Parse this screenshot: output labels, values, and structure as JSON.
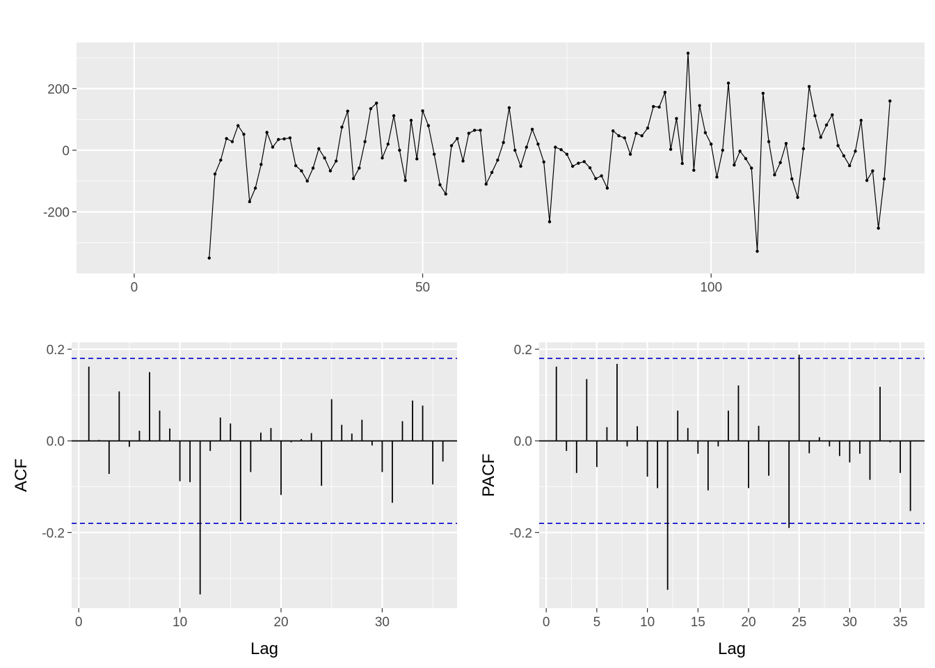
{
  "colors": {
    "panel_background": "#EBEBEB",
    "grid_major": "#FFFFFF",
    "grid_minor": "#F5F5F5",
    "series": "#000000",
    "confidence_band": "#0000CC",
    "tick_text": "#4D4D4D"
  },
  "chart_data": [
    {
      "type": "line",
      "title": "",
      "xlabel": "",
      "ylabel": "",
      "markers": true,
      "grid": true,
      "xlim": [
        -10,
        137
      ],
      "ylim": [
        -400,
        350
      ],
      "xticks": [
        0,
        50,
        100
      ],
      "xtick_labels": [
        "0",
        "50",
        "100"
      ],
      "yticks": [
        -200,
        0,
        200
      ],
      "ytick_labels": [
        "-200",
        "0",
        "200"
      ],
      "x_start": 13,
      "y": [
        -350,
        -77,
        -32,
        38,
        28,
        80,
        52,
        -167,
        -123,
        -46,
        58,
        10,
        35,
        37,
        40,
        -50,
        -67,
        -100,
        -58,
        5,
        -25,
        -67,
        -35,
        75,
        127,
        -92,
        -58,
        28,
        135,
        153,
        -25,
        20,
        112,
        0,
        -98,
        97,
        -28,
        128,
        80,
        -13,
        -112,
        -142,
        15,
        38,
        -35,
        55,
        65,
        65,
        -110,
        -72,
        -32,
        25,
        138,
        0,
        -52,
        10,
        68,
        20,
        -38,
        -232,
        10,
        2,
        -13,
        -52,
        -42,
        -37,
        -57,
        -92,
        -83,
        -123,
        63,
        47,
        40,
        -13,
        55,
        47,
        72,
        142,
        140,
        188,
        3,
        103,
        -43,
        315,
        -65,
        145,
        57,
        20,
        -87,
        0,
        218,
        -48,
        -3,
        -27,
        -58,
        -328,
        185,
        28,
        -80,
        -40,
        22,
        -93,
        -153,
        5,
        207,
        112,
        42,
        82,
        115,
        15,
        -18,
        -50,
        -3,
        97,
        -98,
        -67,
        -253,
        -93,
        160
      ]
    },
    {
      "type": "bar",
      "title": "",
      "xlabel": "Lag",
      "ylabel": "ACF",
      "grid": true,
      "xlim": [
        -0.7,
        37.4
      ],
      "ylim": [
        -0.365,
        0.215
      ],
      "xticks": [
        0,
        10,
        20,
        30
      ],
      "xtick_labels": [
        "0",
        "10",
        "20",
        "30"
      ],
      "yticks": [
        -0.2,
        0.0,
        0.2
      ],
      "ytick_labels": [
        "-0.2",
        "0.0",
        "0.2"
      ],
      "confidence_bounds": [
        0.18,
        -0.18
      ],
      "categories": [
        1,
        2,
        3,
        4,
        5,
        6,
        7,
        8,
        9,
        10,
        11,
        12,
        13,
        14,
        15,
        16,
        17,
        18,
        19,
        20,
        21,
        22,
        23,
        24,
        25,
        26,
        27,
        28,
        29,
        30,
        31,
        32,
        33,
        34,
        35,
        36
      ],
      "values": [
        0.162,
        0.002,
        -0.072,
        0.108,
        -0.013,
        0.022,
        0.15,
        0.066,
        0.027,
        -0.088,
        -0.09,
        -0.335,
        -0.022,
        0.051,
        0.038,
        -0.175,
        -0.068,
        0.018,
        0.028,
        -0.118,
        -0.003,
        0.004,
        0.017,
        -0.098,
        0.091,
        0.035,
        0.016,
        0.046,
        -0.01,
        -0.068,
        -0.135,
        0.043,
        0.088,
        0.077,
        -0.095,
        -0.045
      ]
    },
    {
      "type": "bar",
      "title": "",
      "xlabel": "Lag",
      "ylabel": "PACF",
      "grid": true,
      "xlim": [
        -0.7,
        37.4
      ],
      "ylim": [
        -0.365,
        0.215
      ],
      "xticks": [
        0,
        5,
        10,
        15,
        20,
        25,
        30,
        35
      ],
      "xtick_labels": [
        "0",
        "5",
        "10",
        "15",
        "20",
        "25",
        "30",
        "35"
      ],
      "yticks": [
        -0.2,
        0.0,
        0.2
      ],
      "ytick_labels": [
        "-0.2",
        "0.0",
        "0.2"
      ],
      "confidence_bounds": [
        0.18,
        -0.18
      ],
      "categories": [
        1,
        2,
        3,
        4,
        5,
        6,
        7,
        8,
        9,
        10,
        11,
        12,
        13,
        14,
        15,
        16,
        17,
        18,
        19,
        20,
        21,
        22,
        23,
        24,
        25,
        26,
        27,
        28,
        29,
        30,
        31,
        32,
        33,
        34,
        35,
        36
      ],
      "values": [
        0.162,
        -0.022,
        -0.07,
        0.135,
        -0.057,
        0.03,
        0.168,
        -0.012,
        0.032,
        -0.078,
        -0.103,
        -0.325,
        0.066,
        0.028,
        -0.028,
        -0.108,
        -0.012,
        0.066,
        0.121,
        -0.103,
        0.033,
        -0.076,
        0.0,
        -0.19,
        0.188,
        -0.027,
        0.008,
        -0.012,
        -0.033,
        -0.047,
        -0.028,
        -0.085,
        0.118,
        -0.003,
        -0.07,
        -0.153
      ]
    }
  ]
}
